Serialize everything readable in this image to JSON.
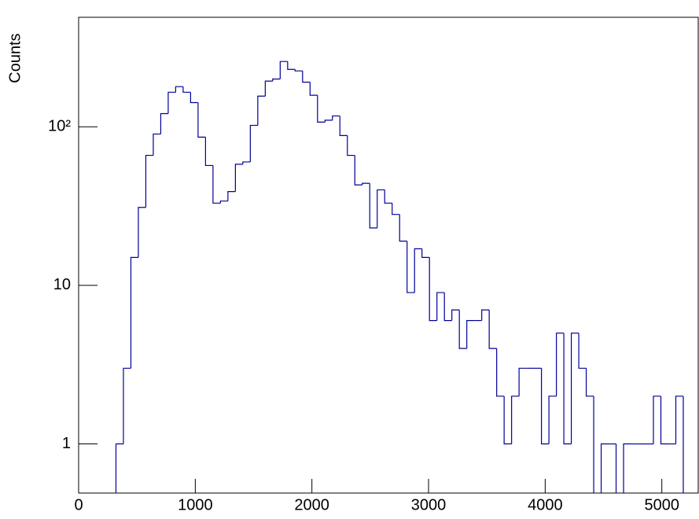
{
  "chart_data": {
    "type": "histogram",
    "y_label": "Counts",
    "color": "#000099",
    "logy": true,
    "grid": false,
    "bins": [
      0,
      64,
      128,
      192,
      256,
      320,
      384,
      448,
      512,
      576,
      640,
      704,
      768,
      832,
      896,
      960,
      1024,
      1088,
      1152,
      1216,
      1280,
      1344,
      1408,
      1472,
      1536,
      1600,
      1664,
      1728,
      1792,
      1856,
      1920,
      1984,
      2048,
      2112,
      2176,
      2240,
      2304,
      2368,
      2432,
      2496,
      2560,
      2624,
      2688,
      2752,
      2816,
      2880,
      2944,
      3008,
      3072,
      3136,
      3200,
      3264,
      3328,
      3392,
      3456,
      3520,
      3584,
      3648,
      3712,
      3776,
      3840,
      3904,
      3968,
      4032,
      4096,
      4160,
      4224,
      4288,
      4352,
      4416,
      4480,
      4544,
      4608,
      4672,
      4736,
      4800,
      4864,
      4928,
      4992,
      5056,
      5120,
      5184,
      5248,
      5312
    ],
    "values": [
      0,
      0,
      0,
      0,
      0,
      1,
      3,
      15,
      31,
      66,
      90,
      121,
      165,
      179,
      165,
      142,
      86,
      57,
      33,
      34,
      39,
      58,
      60,
      102,
      156,
      194,
      200,
      258,
      230,
      225,
      191,
      158,
      107,
      110,
      117,
      88,
      66,
      43,
      44,
      23,
      40,
      33,
      28,
      19,
      9,
      17,
      15,
      6,
      9,
      6,
      7,
      4,
      6,
      6,
      7,
      4,
      2,
      1,
      2,
      3,
      3,
      3,
      1,
      2,
      5,
      1,
      5,
      3,
      2,
      0,
      1,
      1,
      0,
      1,
      1,
      1,
      1,
      2,
      1,
      1,
      2,
      0,
      0
    ],
    "xlim": [
      0,
      5312
    ],
    "xticks": [
      0,
      1000,
      2000,
      3000,
      4000,
      5000
    ],
    "ylim": [
      0.49,
      490
    ],
    "yticks": [
      1,
      10,
      {
        "value": 100,
        "label": "10²"
      }
    ]
  }
}
